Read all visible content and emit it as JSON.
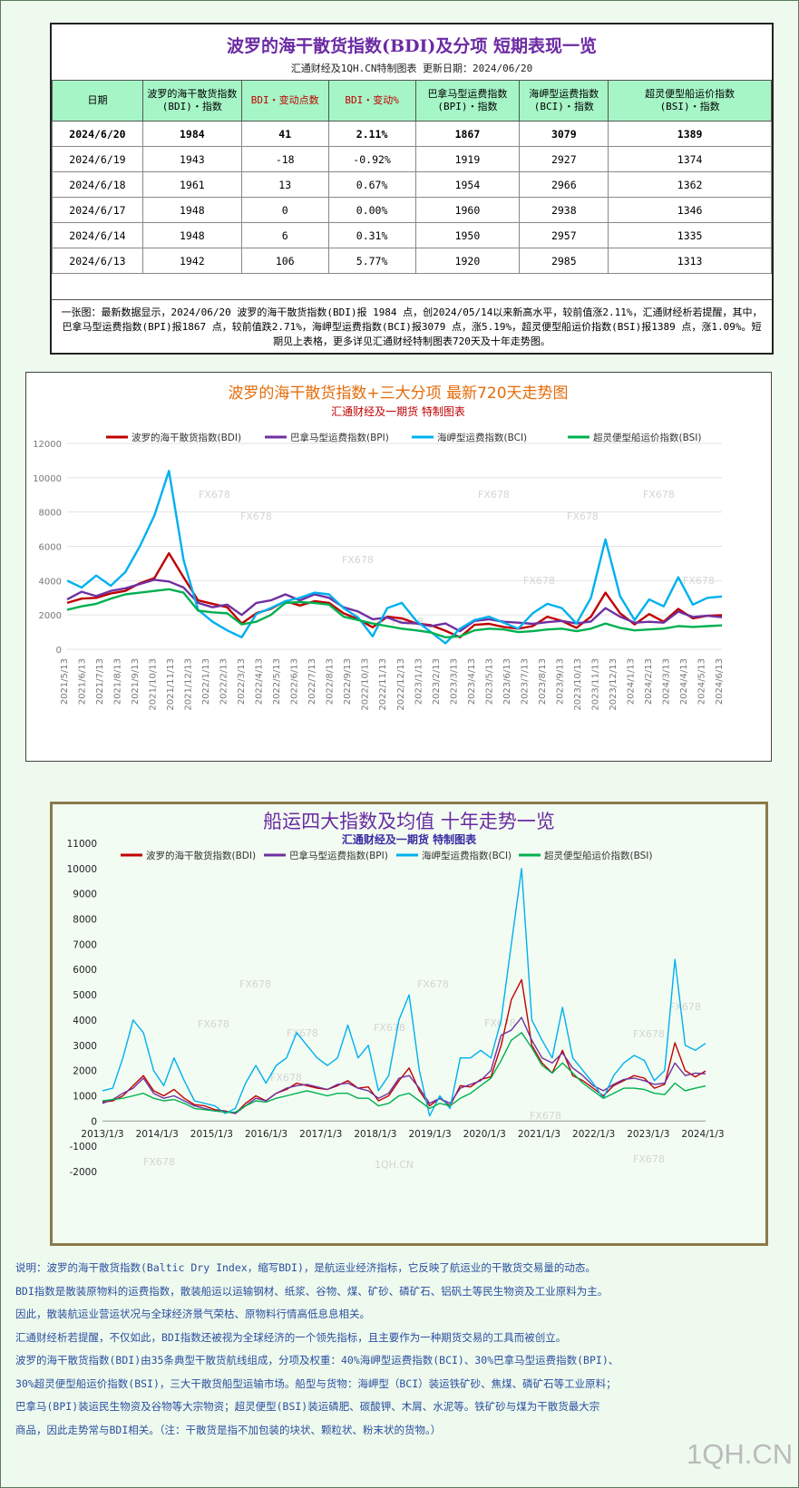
{
  "summary": {
    "title": "波罗的海干散货指数(BDI)及分项 短期表现一览",
    "subtitle": "汇通财经及1QH.CN特制图表    更新日期：2024/06/20",
    "headers": [
      "日期",
      "波罗的海干散货指数\n(BDI)・指数",
      "BDI・变动点数",
      "BDI・变动%",
      "巴拿马型运费指数\n(BPI)・指数",
      "海岬型运费指数\n(BCI)・指数",
      "超灵便型船运价指数\n(BSI)・指数"
    ],
    "rows": [
      [
        "2024/6/20",
        "1984",
        "41",
        "2.11%",
        "1867",
        "3079",
        "1389"
      ],
      [
        "2024/6/19",
        "1943",
        "-18",
        "-0.92%",
        "1919",
        "2927",
        "1374"
      ],
      [
        "2024/6/18",
        "1961",
        "13",
        "0.67%",
        "1954",
        "2966",
        "1362"
      ],
      [
        "2024/6/17",
        "1948",
        "0",
        "0.00%",
        "1960",
        "2938",
        "1346"
      ],
      [
        "2024/6/14",
        "1948",
        "6",
        "0.31%",
        "1950",
        "2957",
        "1335"
      ],
      [
        "2024/6/13",
        "1942",
        "106",
        "5.77%",
        "1920",
        "2985",
        "1313"
      ]
    ],
    "note": "一张图：最新数据显示，2024/06/20 波罗的海干散货指数(BDI)报 1984 点，创2024/05/14以来新高水平，较前值涨2.11%，汇通财经析若提醒，其中，巴拿马型运费指数(BPI)报1867 点，较前值跌2.71%，海岬型运费指数(BCI)报3079 点，涨5.19%，超灵便型船运价指数(BSI)报1389 点，涨1.09%。短期见上表格，更多详见汇通财经特制图表720天及十年走势图。"
  },
  "chart_data": [
    {
      "type": "line",
      "title": "波罗的海干散货指数+三大分项 最新720天走势图",
      "subtitle": "汇通财经及一期货 特制图表",
      "ylim": [
        0,
        12000
      ],
      "yticks": [
        0,
        2000,
        4000,
        6000,
        8000,
        10000,
        12000
      ],
      "x_tick_labels": [
        "2021/5/13",
        "2021/6/13",
        "2021/7/13",
        "2021/8/13",
        "2021/9/13",
        "2021/10/13",
        "2021/11/13",
        "2021/12/13",
        "2022/1/13",
        "2022/2/13",
        "2022/3/13",
        "2022/4/13",
        "2022/5/13",
        "2022/6/13",
        "2022/7/13",
        "2022/8/13",
        "2022/9/13",
        "2022/10/13",
        "2022/11/13",
        "2022/12/13",
        "2023/1/13",
        "2023/2/13",
        "2023/3/13",
        "2023/4/13",
        "2023/5/13",
        "2023/6/13",
        "2023/7/13",
        "2023/8/13",
        "2023/9/13",
        "2023/10/13",
        "2023/11/13",
        "2023/12/13",
        "2024/1/13",
        "2024/2/13",
        "2024/3/13",
        "2024/4/13",
        "2024/5/13",
        "2024/6/13"
      ],
      "grid": true,
      "legend_position": "top",
      "series": [
        {
          "name": "波罗的海干散货指数(BDI)",
          "color": "#c00000",
          "values": [
            2700,
            2950,
            3000,
            3250,
            3400,
            3850,
            4150,
            5600,
            4200,
            2850,
            2650,
            2450,
            1500,
            2100,
            2350,
            2800,
            2550,
            2800,
            2700,
            2100,
            1750,
            1280,
            1900,
            1800,
            1500,
            1400,
            1080,
            700,
            1420,
            1480,
            1300,
            1200,
            1350,
            1900,
            1650,
            1250,
            1900,
            3300,
            2100,
            1450,
            2050,
            1600,
            2350,
            1800,
            1950,
            1984
          ]
        },
        {
          "name": "巴拿马型运费指数(BPI)",
          "color": "#7030a0",
          "values": [
            2900,
            3350,
            3100,
            3400,
            3550,
            3800,
            4050,
            3950,
            3600,
            2700,
            2450,
            2600,
            2000,
            2700,
            2850,
            3200,
            2850,
            3200,
            3000,
            2450,
            2200,
            1750,
            1850,
            1550,
            1500,
            1350,
            1500,
            1050,
            1650,
            1750,
            1600,
            1550,
            1480,
            1580,
            1650,
            1500,
            1620,
            2400,
            1900,
            1550,
            1600,
            1550,
            2200,
            1880,
            1950,
            1867
          ]
        },
        {
          "name": "海岬型运费指数(BCI)",
          "color": "#00b0f0",
          "values": [
            4000,
            3600,
            4300,
            3700,
            4500,
            6000,
            7800,
            10400,
            5200,
            2300,
            1600,
            1100,
            700,
            2050,
            2400,
            2800,
            3000,
            3300,
            3200,
            2400,
            1850,
            750,
            2400,
            2700,
            1650,
            1000,
            350,
            1200,
            1700,
            1900,
            1550,
            1200,
            2100,
            2650,
            2400,
            1500,
            3000,
            6400,
            3100,
            1700,
            2900,
            2500,
            4200,
            2600,
            3000,
            3079
          ]
        },
        {
          "name": "超灵便型船运价指数(BSI)",
          "color": "#00b050",
          "values": [
            2300,
            2500,
            2650,
            2950,
            3200,
            3300,
            3400,
            3500,
            3300,
            2250,
            2150,
            2100,
            1450,
            1600,
            2000,
            2700,
            2750,
            2700,
            2600,
            1900,
            1700,
            1500,
            1350,
            1200,
            1100,
            980,
            700,
            750,
            1100,
            1200,
            1150,
            1000,
            1050,
            1150,
            1200,
            1050,
            1200,
            1500,
            1250,
            1100,
            1150,
            1200,
            1350,
            1300,
            1350,
            1389
          ]
        }
      ]
    },
    {
      "type": "line",
      "title": "船运四大指数及均值 十年走势一览",
      "subtitle": "汇通财经及一期货 特制图表",
      "ylim": [
        -2000,
        11000
      ],
      "yticks": [
        -2000,
        -1000,
        0,
        1000,
        2000,
        3000,
        4000,
        5000,
        6000,
        7000,
        8000,
        9000,
        10000,
        11000
      ],
      "x_tick_labels": [
        "2013/1/3",
        "2014/1/3",
        "2015/1/3",
        "2016/1/3",
        "2017/1/3",
        "2018/1/3",
        "2019/1/3",
        "2020/1/3",
        "2021/1/3",
        "2022/1/3",
        "2023/1/3",
        "2024/1/3"
      ],
      "legend_position": "top",
      "series": [
        {
          "name": "波罗的海干散货指数(BDI)",
          "color": "#c00000",
          "values": [
            750,
            800,
            1000,
            1400,
            1800,
            1200,
            1000,
            1250,
            900,
            650,
            600,
            450,
            400,
            300,
            700,
            1000,
            800,
            1100,
            1250,
            1500,
            1400,
            1300,
            1250,
            1400,
            1600,
            1300,
            1350,
            800,
            1000,
            1600,
            2100,
            1200,
            600,
            900,
            600,
            1400,
            1350,
            1650,
            1750,
            3000,
            4800,
            5600,
            3000,
            2300,
            1900,
            2800,
            1800,
            1600,
            1300,
            1000,
            1400,
            1600,
            1800,
            1700,
            1300,
            1450,
            3100,
            2000,
            1750,
            1984
          ]
        },
        {
          "name": "巴拿马型运费指数(BPI)",
          "color": "#7030a0",
          "values": [
            700,
            850,
            1100,
            1300,
            1700,
            1100,
            900,
            1000,
            800,
            600,
            500,
            400,
            380,
            300,
            600,
            900,
            800,
            1100,
            1300,
            1400,
            1450,
            1350,
            1250,
            1450,
            1500,
            1300,
            1200,
            900,
            1100,
            1700,
            1800,
            1300,
            700,
            900,
            700,
            1300,
            1450,
            1600,
            2000,
            3400,
            3600,
            4100,
            3200,
            2500,
            2300,
            2700,
            2100,
            1800,
            1400,
            1200,
            1450,
            1650,
            1700,
            1600,
            1450,
            1500,
            2300,
            1800,
            1900,
            1867
          ]
        },
        {
          "name": "海岬型运费指数(BCI)",
          "color": "#00b0f0",
          "values": [
            1200,
            1300,
            2500,
            4000,
            3500,
            2000,
            1400,
            2500,
            1600,
            800,
            700,
            600,
            300,
            500,
            1500,
            2200,
            1500,
            2200,
            2500,
            3500,
            3000,
            2500,
            2200,
            2500,
            3800,
            2500,
            3000,
            1200,
            1800,
            4000,
            5000,
            2000,
            200,
            1000,
            500,
            2500,
            2500,
            2800,
            2500,
            4000,
            7000,
            10000,
            4000,
            3200,
            2500,
            4500,
            2500,
            2000,
            1500,
            900,
            1800,
            2300,
            2600,
            2400,
            1600,
            2000,
            6400,
            3000,
            2800,
            3079
          ]
        },
        {
          "name": "超灵便型船运价指数(BSI)",
          "color": "#00b050",
          "values": [
            800,
            850,
            900,
            1000,
            1100,
            900,
            800,
            850,
            700,
            500,
            450,
            400,
            350,
            350,
            600,
            800,
            750,
            900,
            1000,
            1100,
            1200,
            1100,
            1000,
            1100,
            1100,
            900,
            900,
            600,
            700,
            1000,
            1100,
            800,
            500,
            700,
            600,
            900,
            1100,
            1400,
            1700,
            2400,
            3200,
            3500,
            2900,
            2200,
            1900,
            2300,
            1900,
            1500,
            1200,
            900,
            1100,
            1300,
            1300,
            1250,
            1100,
            1050,
            1500,
            1200,
            1300,
            1389
          ]
        }
      ]
    }
  ],
  "chart1_watermarks": [
    "FX678",
    "FX678",
    "FX678",
    "FX678",
    "FX678",
    "FX678",
    "FX678",
    "FX678",
    "FX678"
  ],
  "chart2_watermarks": [
    "FX678",
    "FX678",
    "FX678",
    "FX678",
    "FX678",
    "FX678",
    "FX678",
    "FX678",
    "FX678",
    "FX678",
    "FX678",
    "FX678",
    "1QH.CN"
  ],
  "explanation": [
    "说明：波罗的海干散货指数(Baltic Dry Index，缩写BDI)，是航运业经济指标，它反映了航运业的干散货交易量的动态。",
    "BDI指数是散装原物料的运费指数，散装船运以运输钢材、纸浆、谷物、煤、矿砂、磷矿石、铝矾土等民生物资及工业原料为主。",
    "因此，散装航运业营运状况与全球经济景气荣枯、原物料行情高低息息相关。",
    "汇通财经析若提醒，不仅如此，BDI指数还被视为全球经济的一个领先指标，且主要作为一种期货交易的工具而被创立。",
    "波罗的海干散货指数(BDI)由35条典型干散货航线组成，分项及权重：40%海岬型运费指数(BCI)、30%巴拿马型运费指数(BPI)、",
    "30%超灵便型船运价指数(BSI)，三大干散货船型运输市场。船型与货物：海岬型（BCI）装运铁矿砂、焦煤、磷矿石等工业原料；",
    "巴拿马(BPI)装运民生物资及谷物等大宗物资；超灵便型(BSI)装运磷肥、碳酸钾、木屑、水泥等。铁矿砂与煤为干散货最大宗",
    "商品，因此走势常与BDI相关。（注：干散货是指不加包装的块状、颗粒状、粉末状的货物。）"
  ],
  "logo_text": "1QH.CN",
  "colors": {
    "header_bg": "#a6f5c6",
    "title_purple": "#6b2aa3",
    "chart1_title": "#e46c0a",
    "explain_blue": "#2b4fa0"
  }
}
